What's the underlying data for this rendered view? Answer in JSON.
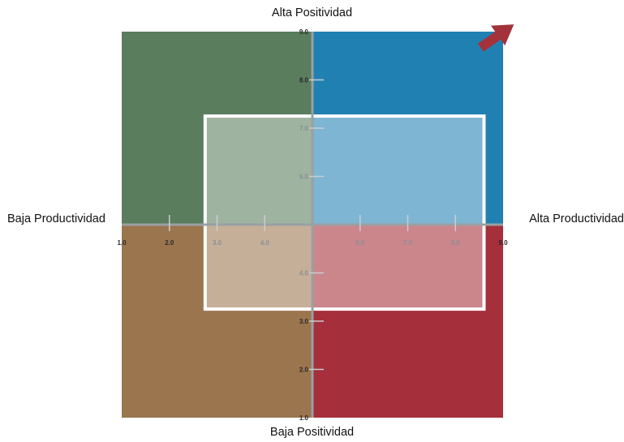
{
  "chart_data": {
    "type": "quadrant",
    "axis_labels": {
      "top": "Alta Positividad",
      "bottom": "Baja Positividad",
      "left": "Baja Productividad",
      "right": "Alta Productividad"
    },
    "x_ticks": [
      "1.0",
      "2.0",
      "3.0",
      "4.0",
      "6.0",
      "7.0",
      "8.0",
      "9.0"
    ],
    "y_ticks": [
      "1.0",
      "2.0",
      "3.0",
      "4.0",
      "6.0",
      "7.0",
      "8.0",
      "9.0"
    ],
    "xlim": [
      1,
      9
    ],
    "ylim": [
      1,
      9
    ],
    "center": [
      5,
      5
    ],
    "quadrants": [
      {
        "position": "top-left",
        "color": "#5a7d5e"
      },
      {
        "position": "top-right",
        "color": "#2180b2"
      },
      {
        "position": "bottom-left",
        "color": "#9b754e"
      },
      {
        "position": "bottom-right",
        "color": "#a52f3a"
      }
    ],
    "highlight_box": {
      "x": [
        2.75,
        8.6
      ],
      "y": [
        3.25,
        7.25
      ]
    },
    "arrow_color": "#a3323b",
    "arrow_direction": "top-right"
  }
}
